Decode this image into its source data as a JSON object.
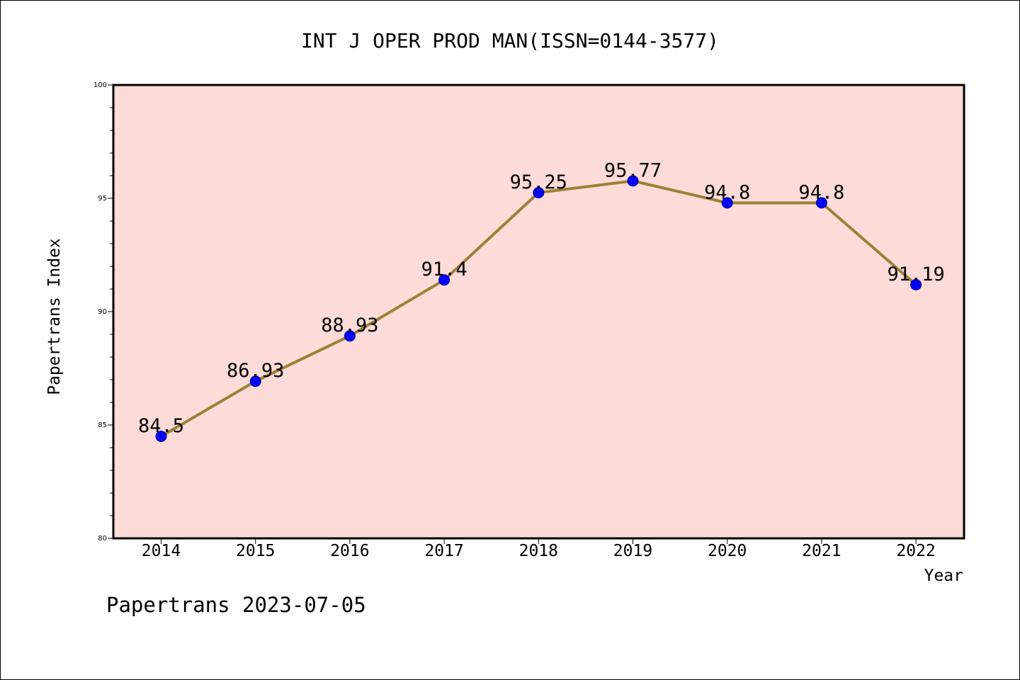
{
  "chart_data": {
    "type": "line",
    "title": "INT J OPER PROD MAN(ISSN=0144-3577)",
    "xlabel": "Year",
    "ylabel": "Papertrans Index",
    "categories": [
      "2014",
      "2015",
      "2016",
      "2017",
      "2018",
      "2019",
      "2020",
      "2021",
      "2022"
    ],
    "values": [
      84.5,
      86.93,
      88.93,
      91.4,
      95.25,
      95.77,
      94.8,
      94.8,
      91.19
    ],
    "data_labels": [
      "84.5",
      "86.93",
      "88.93",
      "91.4",
      "95.25",
      "95.77",
      "94.8",
      "94.8",
      "91.19"
    ],
    "ylim": [
      80,
      100
    ],
    "yticks": [
      "80",
      "85",
      "90",
      "95",
      "100"
    ],
    "grid": false,
    "footer": "Papertrans 2023-07-05",
    "colors": {
      "plot_background": "#fddbd8",
      "line": "#9a8235",
      "marker": "#0000ff",
      "marker_edge": "#00008b"
    }
  }
}
